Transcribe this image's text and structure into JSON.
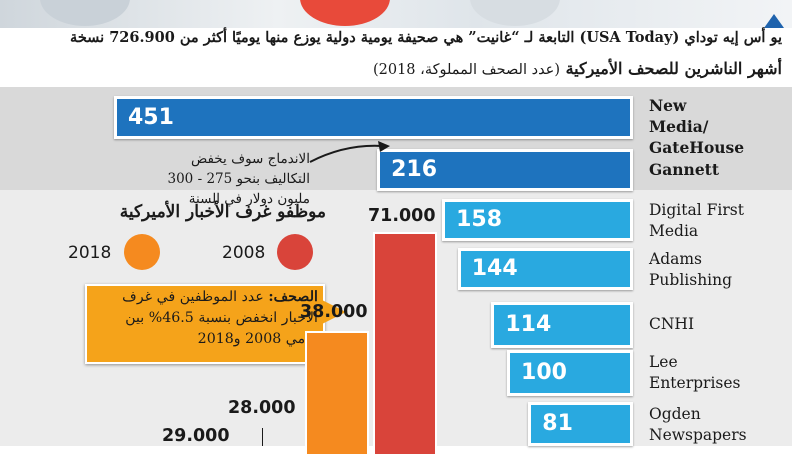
{
  "header": {
    "line1": "يو أس إيه توداي (USA Today) التابعة لـ “غانيت” هي صحيفة يومية دولية يوزع منها يوميًا أكثر من 726.900 نسخة",
    "title": "أشهر الناشرين للصحف الأميركية",
    "subtitle": "(عدد الصحف المملوكة، 2018)"
  },
  "merge_note": "الاندماج سوف يخفض التكاليف بنحو 275 - 300 مليون دولار في السنة",
  "employees": {
    "title": "موظفو غرف الأخبار الأميركية",
    "legend": [
      {
        "year": "2008",
        "color": "#d9443a"
      },
      {
        "year": "2018",
        "color": "#f58a1f"
      }
    ],
    "callout_label": "الصحف:",
    "callout_text": " عدد الموظفين في غرف الأخبار انخفض بنسبة 46.5% بين عامي 2008 و2018"
  },
  "colors": {
    "dark_blue": "#1e73be",
    "light_blue": "#29a9e0",
    "red": "#d9443a",
    "orange": "#f58a1f",
    "callout": "#f5a31a"
  },
  "chart_data": [
    {
      "type": "bar",
      "orientation": "horizontal",
      "title": "أشهر الناشرين للصحف الأميركية",
      "subtitle": "(عدد الصحف المملوكة، 2018)",
      "categories": [
        "New Media/ GateHouse",
        "Gannett",
        "Digital First Media",
        "Adams Publishing",
        "CNHI",
        "Lee Enterprises",
        "Ogden Newspapers"
      ],
      "values": [
        451,
        216,
        158,
        144,
        114,
        100,
        81
      ],
      "value_labels": [
        "451",
        "216",
        "158",
        "144",
        "114",
        "100",
        "81"
      ]
    },
    {
      "type": "bar",
      "title": "موظفو غرف الأخبار الأميركية",
      "series": [
        {
          "name": "2008",
          "values": [
            71000,
            null
          ]
        },
        {
          "name": "2018",
          "values": [
            38000,
            28000
          ]
        }
      ],
      "value_labels": {
        "red_2008": "71.000",
        "orange_2018": "38.000",
        "orange_2018_b": "28.000",
        "partial": "29.000"
      }
    }
  ]
}
